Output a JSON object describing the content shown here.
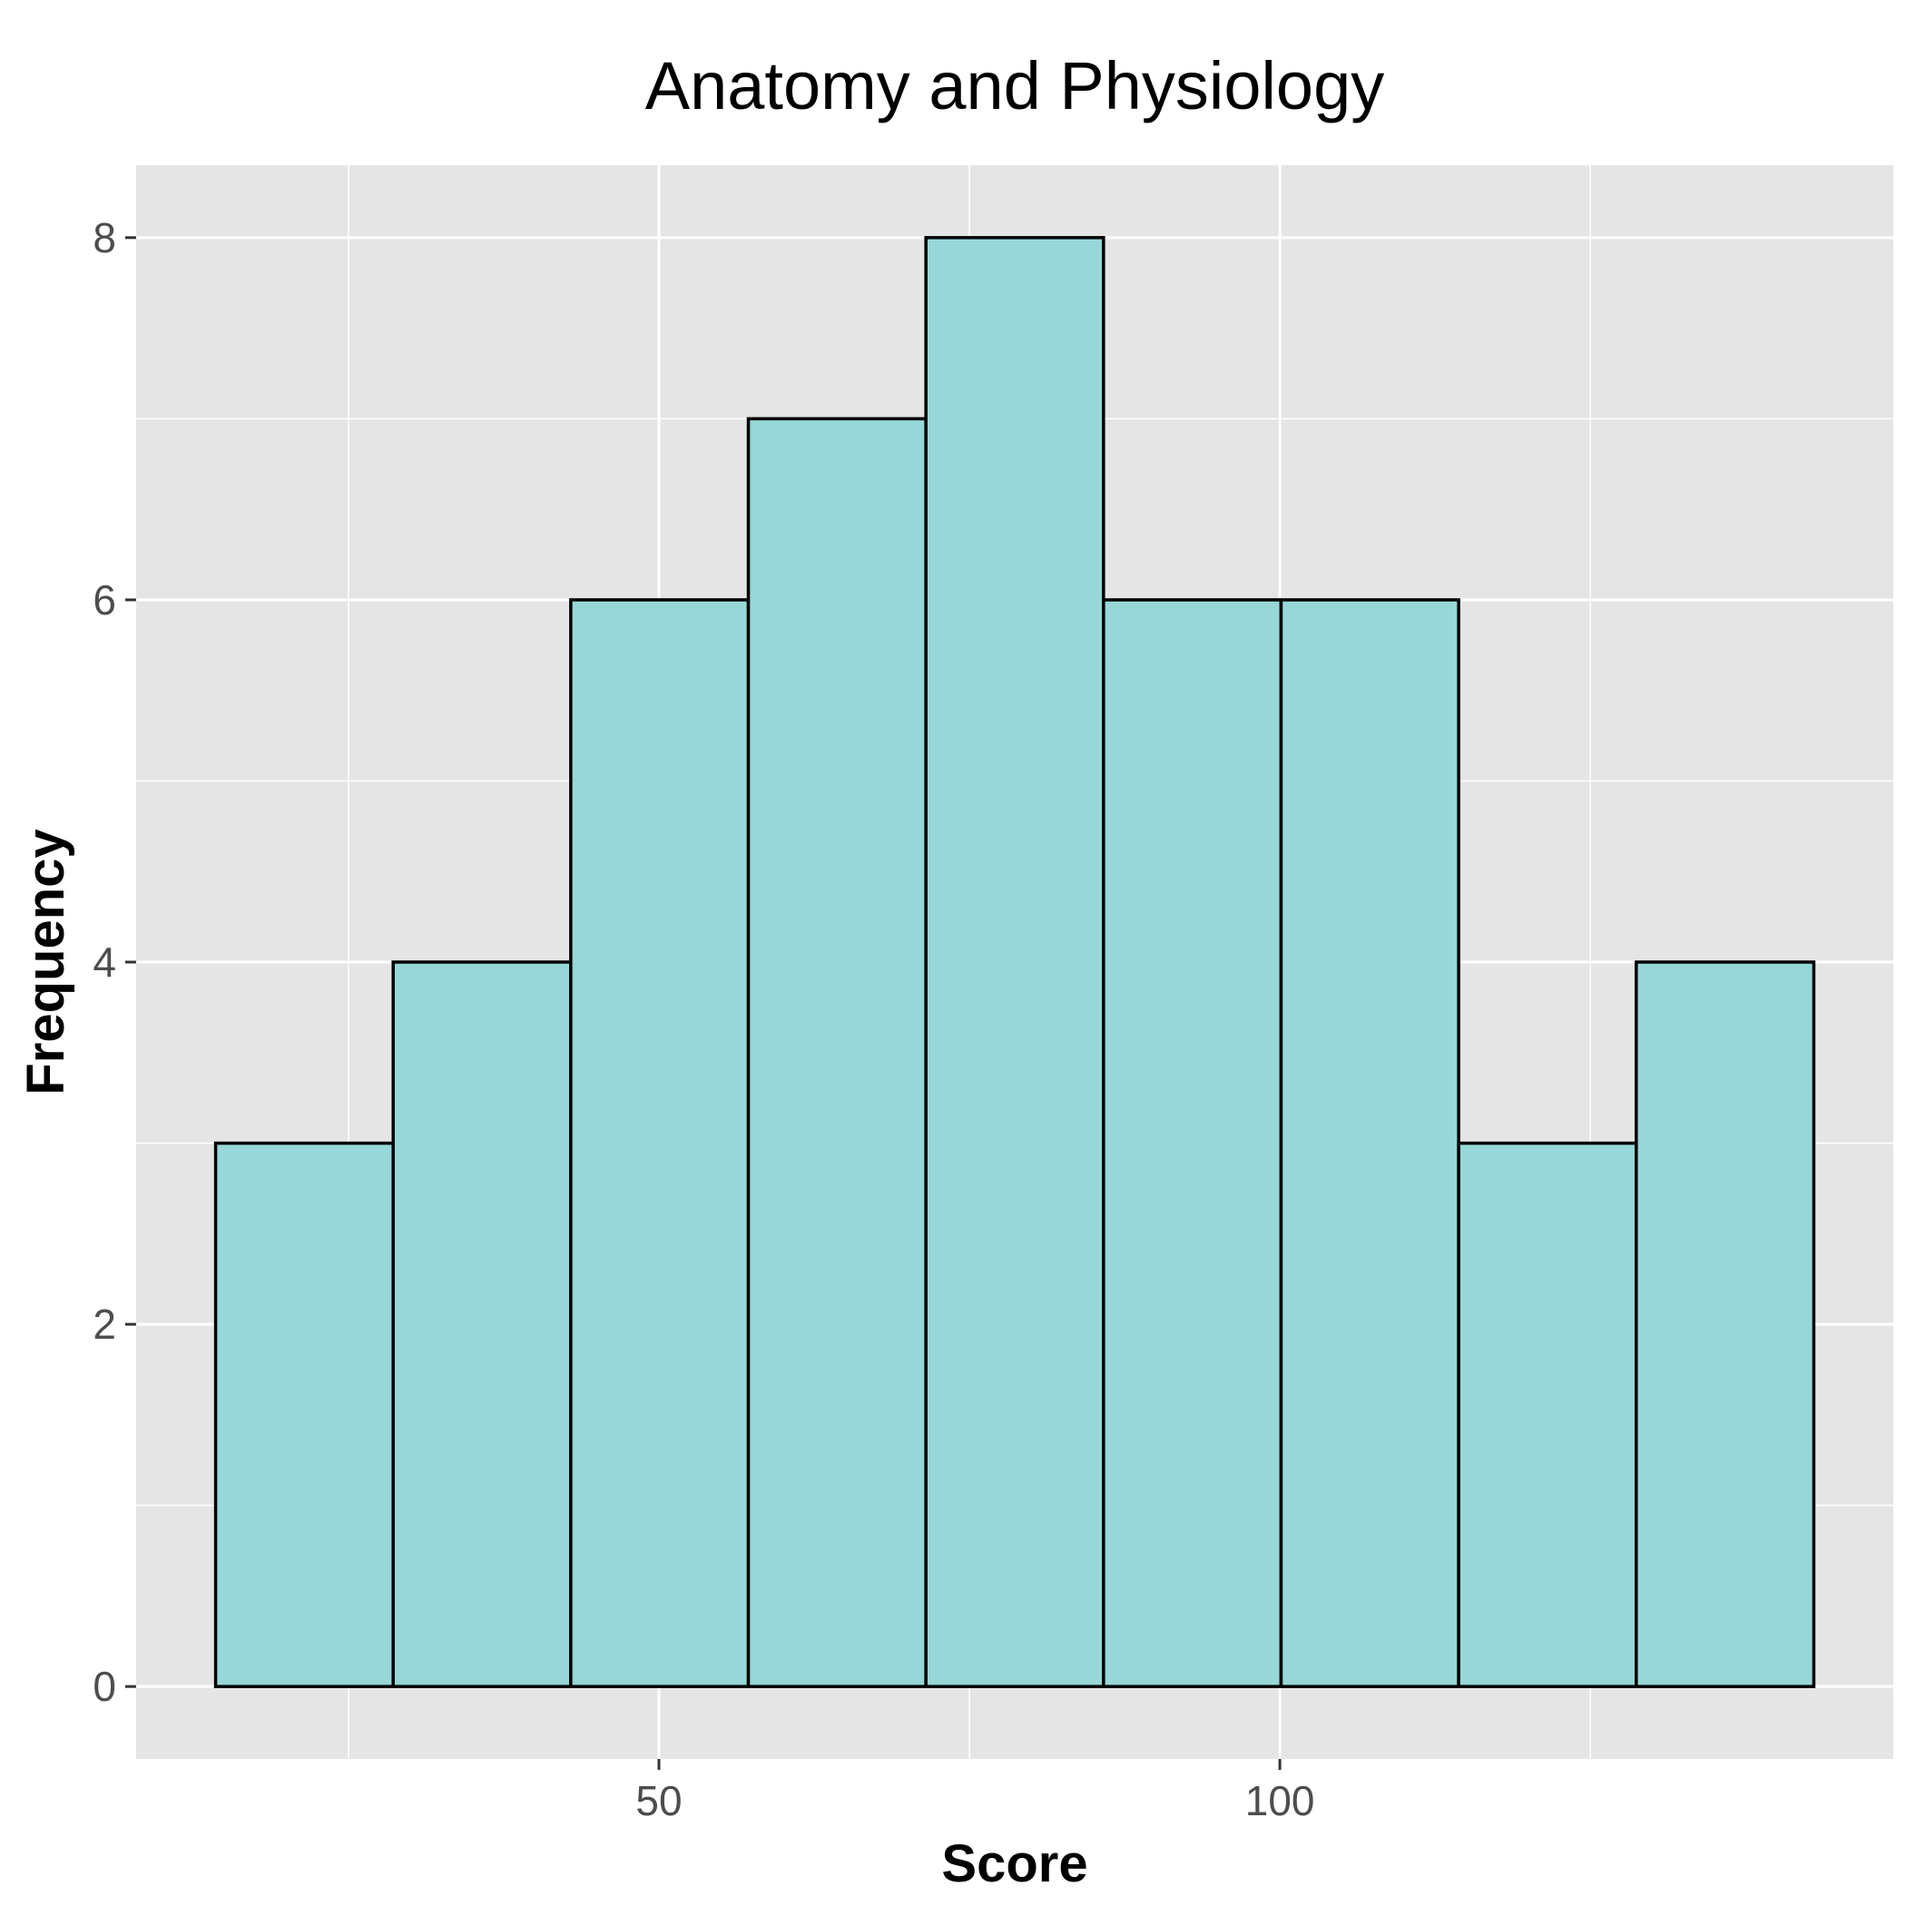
{
  "chart_data": {
    "type": "bar",
    "title": "Anatomy and Physiology",
    "xlabel": "Score",
    "ylabel": "Frequency",
    "bins": [
      {
        "start": 14.3,
        "end": 28.6,
        "count": 3
      },
      {
        "start": 28.6,
        "end": 42.9,
        "count": 4
      },
      {
        "start": 42.9,
        "end": 57.2,
        "count": 6
      },
      {
        "start": 57.2,
        "end": 71.5,
        "count": 7
      },
      {
        "start": 71.5,
        "end": 85.8,
        "count": 8
      },
      {
        "start": 85.8,
        "end": 100.1,
        "count": 6
      },
      {
        "start": 100.1,
        "end": 114.4,
        "count": 6
      },
      {
        "start": 114.4,
        "end": 128.7,
        "count": 3
      },
      {
        "start": 128.7,
        "end": 143.0,
        "count": 4
      }
    ],
    "xlim": [
      7.9,
      149.4
    ],
    "ylim": [
      -0.4,
      8.4
    ],
    "x_ticks": [
      50,
      100
    ],
    "x_tick_labels": [
      "50",
      "100"
    ],
    "x_minor_ticks": [
      25,
      75,
      125
    ],
    "y_ticks": [
      0,
      2,
      4,
      6,
      8
    ],
    "y_tick_labels": [
      "0",
      "2",
      "4",
      "6",
      "8"
    ],
    "y_minor_ticks": [
      1,
      3,
      5,
      7
    ],
    "grid": true,
    "colors": {
      "bar_fill": "#97D7D7",
      "bar_stroke": "#000000",
      "panel_background": "#E5E5E5",
      "grid": "#FFFFFF"
    }
  }
}
